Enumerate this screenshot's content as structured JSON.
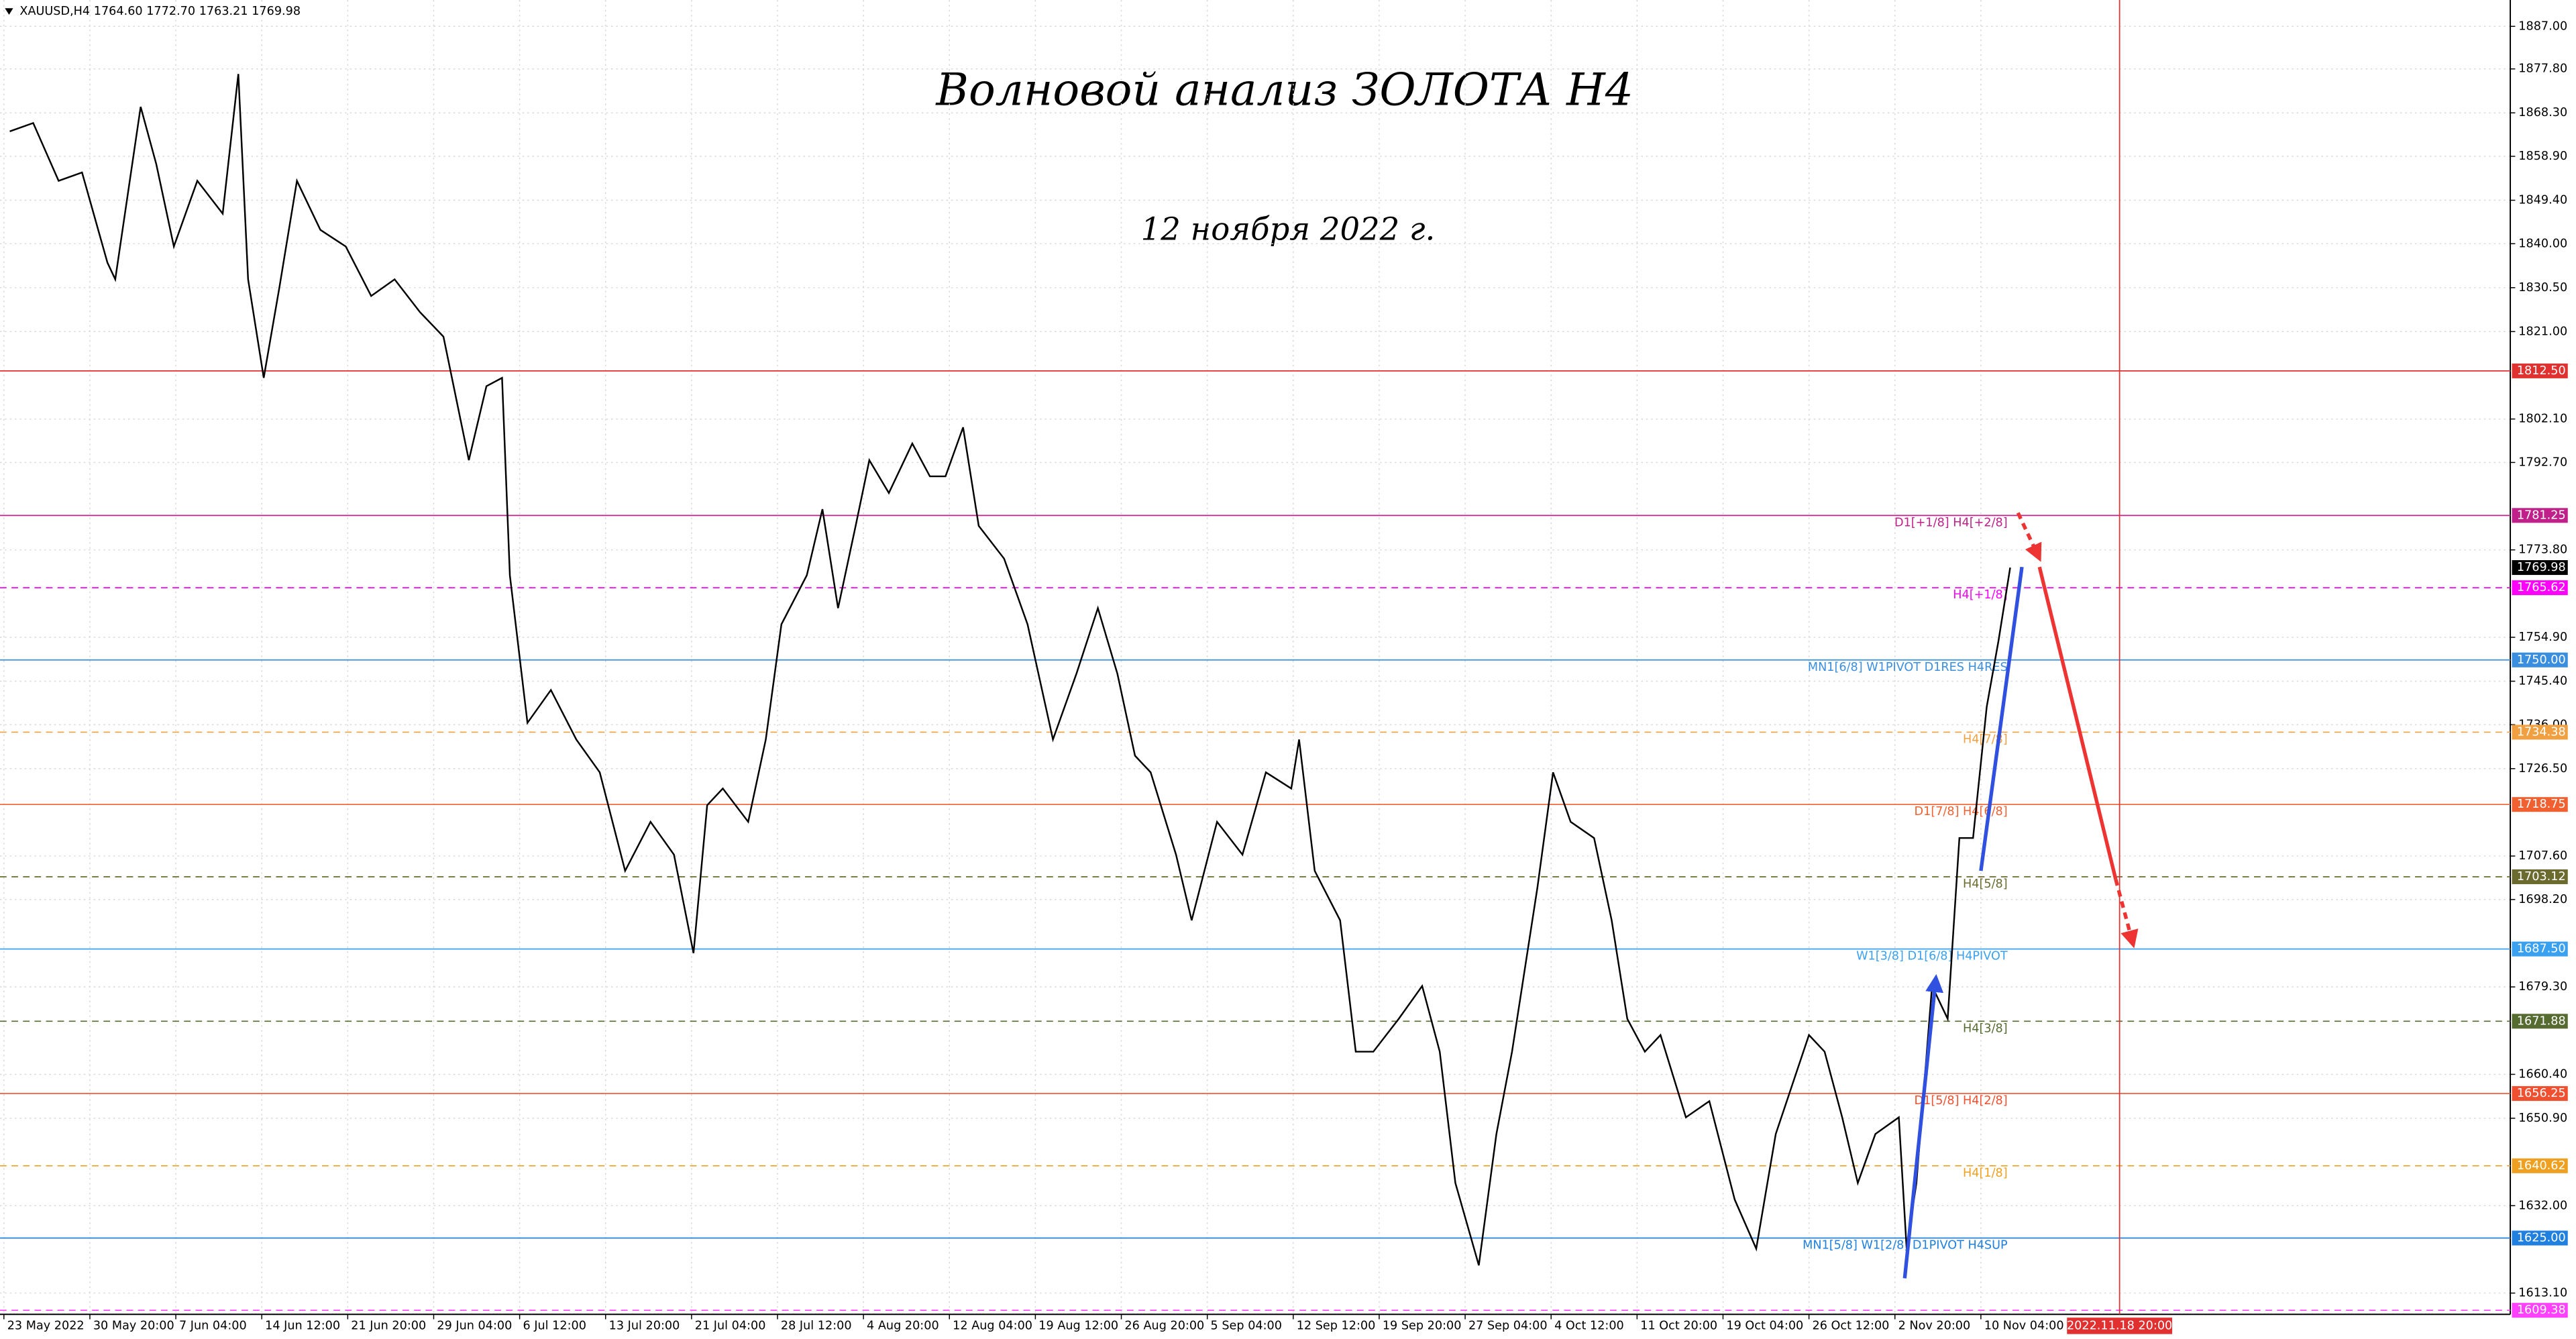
{
  "chart_data": {
    "type": "line",
    "header": "XAUUSD,H4  1764.60 1772.70 1763.21 1769.98",
    "title": "Волновой анализ ЗОЛОТА H4",
    "subtitle": "12 ноября 2022 г.",
    "color": "#000000",
    "grid": true,
    "xlim": [
      -2,
      1283
    ],
    "ylim": [
      1608.5,
      1892.7
    ],
    "xticks": [
      {
        "value": 0,
        "label": "23 May 2022"
      },
      {
        "value": 44,
        "label": "30 May 20:00"
      },
      {
        "value": 88,
        "label": "7 Jun 04:00"
      },
      {
        "value": 132,
        "label": "14 Jun 12:00"
      },
      {
        "value": 176,
        "label": "21 Jun 20:00"
      },
      {
        "value": 220,
        "label": "29 Jun 04:00"
      },
      {
        "value": 264,
        "label": "6 Jul 12:00"
      },
      {
        "value": 308,
        "label": "13 Jul 20:00"
      },
      {
        "value": 352,
        "label": "21 Jul 04:00"
      },
      {
        "value": 396,
        "label": "28 Jul 12:00"
      },
      {
        "value": 440,
        "label": "4 Aug 20:00"
      },
      {
        "value": 484,
        "label": "12 Aug 04:00"
      },
      {
        "value": 528,
        "label": "19 Aug 12:00"
      },
      {
        "value": 572,
        "label": "26 Aug 20:00"
      },
      {
        "value": 616,
        "label": "5 Sep 04:00"
      },
      {
        "value": 660,
        "label": "12 Sep 12:00"
      },
      {
        "value": 704,
        "label": "19 Sep 20:00"
      },
      {
        "value": 748,
        "label": "27 Sep 04:00"
      },
      {
        "value": 792,
        "label": "4 Oct 12:00"
      },
      {
        "value": 836,
        "label": "11 Oct 20:00"
      },
      {
        "value": 880,
        "label": "19 Oct 04:00"
      },
      {
        "value": 924,
        "label": "26 Oct 12:00"
      },
      {
        "value": 968,
        "label": "2 Nov 20:00"
      },
      {
        "value": 1012,
        "label": "10 Nov 04:00"
      }
    ],
    "cursor": {
      "value": 1083,
      "label": "2022.11.18 20:00",
      "color": "#e03030"
    },
    "yticks": [
      {
        "value": 1887.0,
        "label": "1887.00"
      },
      {
        "value": 1877.8,
        "label": "1877.80"
      },
      {
        "value": 1868.3,
        "label": "1868.30"
      },
      {
        "value": 1858.9,
        "label": "1858.90"
      },
      {
        "value": 1849.4,
        "label": "1849.40"
      },
      {
        "value": 1840.0,
        "label": "1840.00"
      },
      {
        "value": 1830.5,
        "label": "1830.50"
      },
      {
        "value": 1821.0,
        "label": "1821.00"
      },
      {
        "value": 1802.1,
        "label": "1802.10"
      },
      {
        "value": 1792.7,
        "label": "1792.70"
      },
      {
        "value": 1773.8,
        "label": "1773.80"
      },
      {
        "value": 1754.9,
        "label": "1754.90"
      },
      {
        "value": 1745.4,
        "label": "1745.40"
      },
      {
        "value": 1736.0,
        "label": "1736.00"
      },
      {
        "value": 1726.5,
        "label": "1726.50"
      },
      {
        "value": 1707.6,
        "label": "1707.60"
      },
      {
        "value": 1698.2,
        "label": "1698.20"
      },
      {
        "value": 1679.3,
        "label": "1679.30"
      },
      {
        "value": 1660.4,
        "label": "1660.40"
      },
      {
        "value": 1650.9,
        "label": "1650.90"
      },
      {
        "value": 1632.0,
        "label": "1632.00"
      },
      {
        "value": 1613.1,
        "label": "1613.10"
      }
    ],
    "x": [
      3,
      15,
      28,
      40,
      53,
      57,
      70,
      78,
      87,
      99,
      112,
      120,
      125,
      133,
      141,
      150,
      162,
      175,
      188,
      200,
      213,
      225,
      238,
      247,
      255,
      259,
      268,
      280,
      293,
      305,
      318,
      331,
      343,
      353,
      360,
      368,
      381,
      390,
      398,
      411,
      419,
      427,
      436,
      443,
      453,
      465,
      474,
      482,
      491,
      499,
      512,
      524,
      537,
      549,
      560,
      570,
      579,
      587,
      600,
      608,
      621,
      634,
      646,
      659,
      663,
      671,
      684,
      692,
      701,
      714,
      726,
      735,
      743,
      755,
      764,
      772,
      785,
      793,
      802,
      814,
      823,
      831,
      840,
      848,
      861,
      873,
      886,
      897,
      907,
      924,
      932,
      941,
      949,
      958,
      970,
      974,
      979,
      987,
      995,
      1001,
      1008,
      1015,
      1021,
      1027
    ],
    "values": [
      1864.3,
      1866.1,
      1853.6,
      1855.4,
      1835.9,
      1832.3,
      1869.6,
      1857.2,
      1839.4,
      1853.6,
      1846.5,
      1876.7,
      1832.3,
      1811.0,
      1830.5,
      1853.6,
      1843.0,
      1839.4,
      1828.7,
      1832.3,
      1825.2,
      1819.9,
      1793.2,
      1809.2,
      1811.0,
      1768.3,
      1736.4,
      1743.5,
      1732.8,
      1725.7,
      1704.4,
      1715.0,
      1707.9,
      1686.6,
      1718.6,
      1722.2,
      1715.0,
      1732.8,
      1757.7,
      1768.3,
      1782.6,
      1761.2,
      1779.0,
      1793.2,
      1786.1,
      1796.8,
      1789.7,
      1789.7,
      1800.3,
      1779.0,
      1771.9,
      1757.7,
      1732.8,
      1747.0,
      1761.2,
      1747.0,
      1729.3,
      1725.7,
      1707.9,
      1693.7,
      1715.0,
      1707.9,
      1725.7,
      1722.2,
      1732.8,
      1704.4,
      1693.7,
      1665.3,
      1665.3,
      1672.4,
      1679.5,
      1665.3,
      1636.9,
      1619.1,
      1647.5,
      1665.3,
      1700.8,
      1725.7,
      1715.0,
      1711.5,
      1693.7,
      1672.4,
      1665.3,
      1668.9,
      1651.1,
      1654.6,
      1633.3,
      1622.7,
      1647.5,
      1668.9,
      1665.3,
      1651.1,
      1636.9,
      1647.5,
      1651.1,
      1622.7,
      1636.9,
      1679.5,
      1672.4,
      1711.5,
      1711.5,
      1739.9,
      1754.1,
      1769.98
    ],
    "current_price": {
      "value": 1769.98,
      "label": "1769.98"
    },
    "levels": {
      "values": [
        1812.5,
        1781.25,
        1765.62,
        1750.0,
        1734.38,
        1718.75,
        1703.12,
        1687.5,
        1671.88,
        1656.25,
        1640.62,
        1625.0,
        1609.38
      ],
      "value_labels": [
        "1812.50",
        "1781.25",
        "1765.62",
        "1750.00",
        "1734.38",
        "1718.75",
        "1703.12",
        "1687.50",
        "1671.88",
        "1656.25",
        "1640.62",
        "1625.00",
        "1609.38"
      ],
      "colors": [
        "#e03030",
        "#c0208a",
        "#ff00ff",
        "#3a8ee0",
        "#f0a040",
        "#f06030",
        "#6b6b2f",
        "#3aa0f0",
        "#556b2f",
        "#f05030",
        "#f0a020",
        "#2080e0",
        "#ff40ff"
      ],
      "dashed": [
        false,
        false,
        true,
        false,
        true,
        false,
        true,
        false,
        true,
        false,
        true,
        false,
        true
      ],
      "labels": [
        null,
        "D1[+1/8] H4[+2/8]",
        "H4[+1/8]",
        "MN1[6/8] W1PIVOT D1RES H4RES",
        "H4[7/8]",
        "D1[7/8] H4[6/8]",
        "H4[5/8]",
        "W1[3/8] D1[6/8] H4PIVOT",
        "H4[3/8]",
        "D1[5/8] H4[2/8]",
        "H4[1/8]",
        "MN1[5/8] W1[2/8] D1PIVOT H4SUP",
        null
      ]
    },
    "arrows": [
      {
        "color": "#3050e0",
        "dashed": false,
        "x": [
          973,
          989
        ],
        "y": [
          1616.3,
          1681.3
        ]
      },
      {
        "color": "#3050e0",
        "dashed": false,
        "x": [
          1012,
          1033
        ],
        "y": [
          1704.4,
          1770.1
        ]
      },
      {
        "color": "#ee3333",
        "dashed": true,
        "x": [
          1031,
          1042
        ],
        "y": [
          1781.8,
          1771.9
        ]
      },
      {
        "color": "#ee3333",
        "dashed": false,
        "x": [
          1042,
          1081
        ],
        "y": [
          1770.1,
          1702.6
        ]
      },
      {
        "color": "#ee3333",
        "dashed": true,
        "x": [
          1081,
          1090
        ],
        "y": [
          1702.6,
          1688.4
        ]
      }
    ]
  }
}
